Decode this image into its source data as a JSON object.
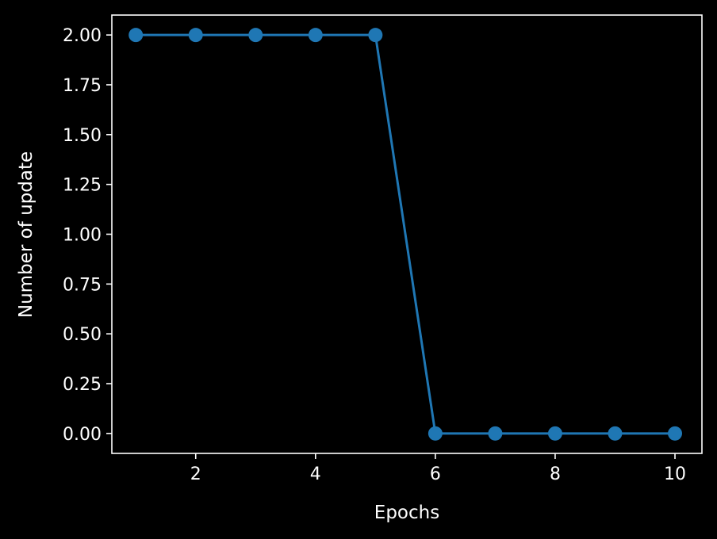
{
  "chart_data": {
    "type": "line",
    "x": [
      1,
      2,
      3,
      4,
      5,
      6,
      7,
      8,
      9,
      10
    ],
    "series": [
      {
        "values": [
          2,
          2,
          2,
          2,
          2,
          0,
          0,
          0,
          0,
          0
        ],
        "color": "#1f77b4",
        "marker": "circle"
      }
    ],
    "xlabel": "Epochs",
    "ylabel": "Number of update",
    "xlim": [
      0.6,
      10.45
    ],
    "ylim": [
      -0.1,
      2.1
    ],
    "xticks": [
      2,
      4,
      6,
      8,
      10
    ],
    "xtick_labels": [
      "2",
      "4",
      "6",
      "8",
      "10"
    ],
    "yticks": [
      0,
      0.25,
      0.5,
      0.75,
      1,
      1.25,
      1.5,
      1.75,
      2
    ],
    "ytick_labels": [
      "0.00",
      "0.25",
      "0.50",
      "0.75",
      "1.00",
      "1.25",
      "1.50",
      "1.75",
      "2.00"
    ],
    "grid": false,
    "legend": "none",
    "background_color": "#000000",
    "foreground_color": "#ffffff"
  }
}
